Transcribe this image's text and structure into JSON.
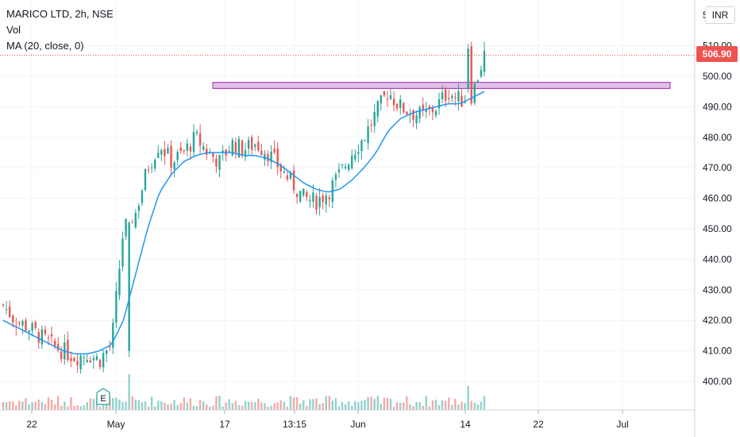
{
  "legend": {
    "symbol": "MARICO LTD, 2h, NSE",
    "volume": "Vol",
    "ma": "MA (20, close, 0)"
  },
  "currency": "INR",
  "last_price": "506.90",
  "earnings_marker": "E",
  "colors": {
    "up": "#26a69a",
    "down": "#ef5350",
    "ma": "#2196f3",
    "zone_fill": "#e1bee7",
    "zone_border": "#9c27b0",
    "grid": "#f0f3fa"
  },
  "chart_data": {
    "type": "candlestick",
    "y_axis": {
      "min": 390,
      "max": 520,
      "ticks": [
        "400.00",
        "410.00",
        "420.00",
        "430.00",
        "440.00",
        "450.00",
        "460.00",
        "470.00",
        "480.00",
        "490.00",
        "500.00",
        "510.00",
        "5"
      ]
    },
    "x_axis": {
      "tick_labels": [
        "22",
        "May",
        "17",
        "13:15",
        "Jun",
        "14",
        "22",
        "Jul"
      ]
    },
    "resistance_zone": {
      "low": 496,
      "high": 498
    },
    "close_path": [
      425,
      420,
      418,
      415,
      412,
      410,
      408,
      409,
      407,
      412,
      450,
      455,
      470,
      478,
      472,
      475,
      480,
      475,
      472,
      478,
      476,
      478,
      475,
      470,
      465,
      460,
      459,
      462,
      468,
      475,
      480,
      488,
      495,
      490,
      488,
      487,
      490,
      495,
      492,
      494,
      507
    ],
    "ma_path": [
      420,
      418,
      416,
      414,
      412,
      410,
      409,
      409,
      410,
      412,
      420,
      435,
      450,
      462,
      468,
      472,
      474,
      475,
      475,
      475,
      474,
      474,
      473,
      471,
      468,
      465,
      463,
      462,
      463,
      466,
      470,
      475,
      482,
      486,
      488,
      489,
      490,
      491,
      491,
      493,
      495
    ]
  }
}
